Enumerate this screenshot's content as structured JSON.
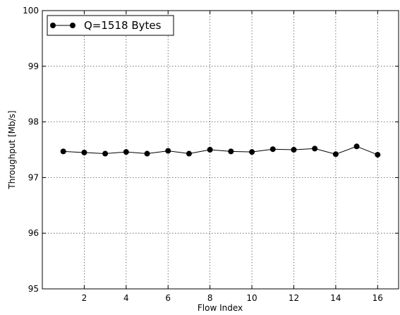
{
  "chart_data": {
    "type": "line",
    "xlabel": "Flow Index",
    "ylabel": "Throughput [Mb/s]",
    "xlim": [
      0,
      17
    ],
    "ylim": [
      95,
      100
    ],
    "xticks": [
      2,
      4,
      6,
      8,
      10,
      12,
      14,
      16
    ],
    "yticks": [
      95,
      96,
      97,
      98,
      99,
      100
    ],
    "grid": true,
    "legend_position": "top-left",
    "series": [
      {
        "name": "Q=1518 Bytes",
        "color": "#000000",
        "marker": "circle",
        "x": [
          1,
          2,
          3,
          4,
          5,
          6,
          7,
          8,
          9,
          10,
          11,
          12,
          13,
          14,
          15,
          16
        ],
        "y": [
          97.47,
          97.45,
          97.43,
          97.46,
          97.43,
          97.48,
          97.43,
          97.5,
          97.47,
          97.46,
          97.51,
          97.5,
          97.52,
          97.42,
          97.56,
          97.41
        ]
      }
    ]
  }
}
